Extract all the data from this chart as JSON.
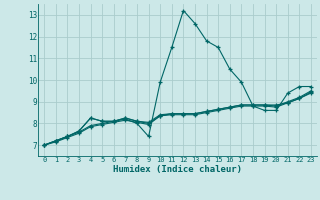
{
  "background_color": "#cce8e8",
  "grid_color": "#aacccc",
  "line_color": "#006666",
  "marker": "+",
  "xlabel": "Humidex (Indice chaleur)",
  "xlim": [
    -0.5,
    23.5
  ],
  "ylim": [
    6.5,
    13.5
  ],
  "xticks": [
    0,
    1,
    2,
    3,
    4,
    5,
    6,
    7,
    8,
    9,
    10,
    11,
    12,
    13,
    14,
    15,
    16,
    17,
    18,
    19,
    20,
    21,
    22,
    23
  ],
  "yticks": [
    7,
    8,
    9,
    10,
    11,
    12,
    13
  ],
  "line1_x": [
    0,
    1,
    2,
    3,
    4,
    5,
    6,
    7,
    8,
    9,
    10,
    11,
    12,
    13,
    14,
    15,
    16,
    17,
    18,
    19,
    20,
    21,
    22,
    23
  ],
  "line1_y": [
    7.0,
    7.2,
    7.4,
    7.6,
    7.9,
    8.0,
    8.1,
    8.2,
    8.0,
    7.4,
    9.9,
    11.5,
    13.2,
    12.6,
    11.8,
    11.5,
    10.5,
    9.9,
    8.8,
    8.6,
    8.6,
    9.4,
    9.7,
    9.7
  ],
  "line2_x": [
    0,
    1,
    2,
    3,
    4,
    5,
    6,
    7,
    8,
    9,
    10,
    11,
    12,
    13,
    14,
    15,
    16,
    17,
    18,
    19,
    20,
    21,
    22,
    23
  ],
  "line2_y": [
    7.0,
    7.15,
    7.35,
    7.55,
    7.85,
    7.95,
    8.05,
    8.15,
    8.05,
    7.95,
    8.35,
    8.45,
    8.45,
    8.45,
    8.55,
    8.65,
    8.75,
    8.85,
    8.85,
    8.85,
    8.85,
    8.95,
    9.15,
    9.45
  ],
  "line3_x": [
    0,
    1,
    2,
    3,
    4,
    5,
    6,
    7,
    8,
    9,
    10,
    11,
    12,
    13,
    14,
    15,
    16,
    17,
    18,
    19,
    20,
    21,
    22,
    23
  ],
  "line3_y": [
    7.0,
    7.2,
    7.4,
    7.65,
    8.25,
    8.1,
    8.1,
    8.25,
    8.1,
    8.0,
    8.35,
    8.4,
    8.4,
    8.4,
    8.5,
    8.6,
    8.7,
    8.8,
    8.8,
    8.8,
    8.75,
    8.95,
    9.15,
    9.4
  ],
  "line4_x": [
    0,
    1,
    2,
    3,
    4,
    5,
    6,
    7,
    8,
    9,
    10,
    11,
    12,
    13,
    14,
    15,
    16,
    17,
    18,
    19,
    20,
    21,
    22,
    23
  ],
  "line4_y": [
    7.0,
    7.2,
    7.4,
    7.65,
    8.25,
    8.1,
    8.1,
    8.25,
    8.1,
    8.05,
    8.4,
    8.45,
    8.45,
    8.45,
    8.55,
    8.65,
    8.75,
    8.85,
    8.85,
    8.85,
    8.8,
    9.0,
    9.2,
    9.5
  ]
}
